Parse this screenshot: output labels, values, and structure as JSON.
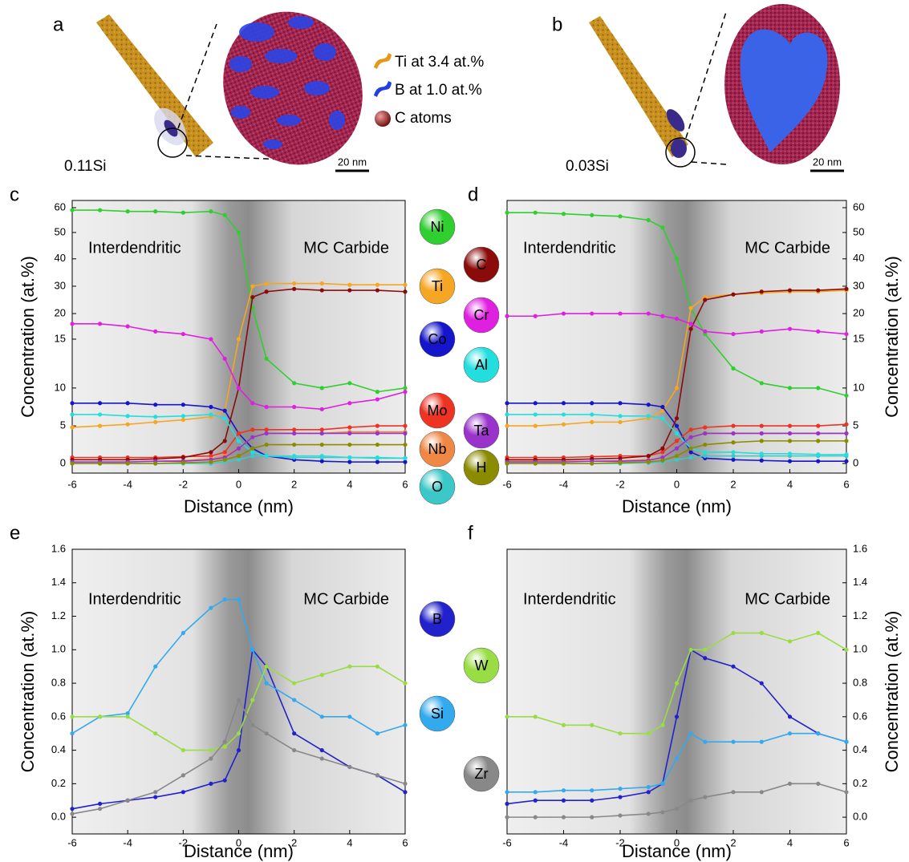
{
  "panels": [
    {
      "letter": "a",
      "sample": "0.11Si",
      "scale_bar": "20 nm"
    },
    {
      "letter": "b",
      "sample": "0.03Si",
      "scale_bar": "20 nm"
    }
  ],
  "legend_3d": [
    "Ti at 3.4 at.%",
    "B at 1.0 at.%",
    "C atoms"
  ],
  "chart_data": [
    {
      "type": "line",
      "panel": "c",
      "xlabel": "Distance (nm)",
      "ylabel": "Concentration (at.%)",
      "annotations": [
        "Interdendritic",
        "MC Carbide"
      ],
      "yscale": "broken",
      "xlim": [
        -6,
        6
      ],
      "xticks": [
        -6,
        -4,
        -2,
        0,
        2,
        4,
        6
      ],
      "ylim": [
        -1,
        61
      ],
      "yticks": [
        0,
        5,
        10,
        15,
        20,
        30,
        40,
        50,
        60
      ],
      "x": [
        -6,
        -5,
        -4,
        -3,
        -2,
        -1,
        -0.5,
        0,
        0.5,
        1,
        2,
        3,
        4,
        5,
        6
      ],
      "series": [
        {
          "name": "Ni",
          "color": "#2fcf2f",
          "values": [
            59,
            59,
            58.5,
            58.5,
            58,
            58.5,
            57,
            50,
            22,
            13,
            10.5,
            10,
            10.5,
            9.5,
            10
          ]
        },
        {
          "name": "Ti",
          "color": "#f5a623",
          "values": [
            4.8,
            5,
            5.2,
            5.5,
            5.8,
            6.2,
            7,
            15,
            30,
            31,
            31,
            31,
            30.5,
            30.5,
            30.5
          ]
        },
        {
          "name": "Co",
          "color": "#1515cc",
          "values": [
            8,
            8,
            8,
            7.8,
            7.8,
            7.5,
            7,
            4,
            2,
            1,
            0.5,
            0.3,
            0.2,
            0.2,
            0.2
          ]
        },
        {
          "name": "Mo",
          "color": "#ee3322",
          "values": [
            0.8,
            0.8,
            0.8,
            0.8,
            0.9,
            1,
            1.5,
            4,
            4.5,
            4.5,
            4.5,
            4.5,
            4.8,
            5,
            5
          ]
        },
        {
          "name": "Nb",
          "color": "#ee8844",
          "values": [
            0.2,
            0.2,
            0.2,
            0.3,
            0.4,
            0.6,
            1,
            2,
            3.5,
            4,
            4,
            4,
            4.2,
            4.2,
            4.2
          ]
        },
        {
          "name": "O",
          "color": "#3cc8c8",
          "values": [
            0,
            0,
            0,
            0,
            0,
            0,
            0.2,
            0.5,
            1,
            1,
            0.8,
            0.8,
            0.8,
            0.7,
            0.7
          ]
        },
        {
          "name": "C",
          "color": "#8b0a0a",
          "values": [
            0.5,
            0.5,
            0.5,
            0.6,
            0.8,
            1.5,
            3,
            10,
            26,
            28,
            29,
            28.5,
            28.5,
            28.5,
            28
          ]
        },
        {
          "name": "Cr",
          "color": "#e020e0",
          "values": [
            18,
            18,
            17.5,
            16.5,
            16,
            15,
            13,
            10,
            8,
            7.5,
            7.5,
            7.2,
            8,
            8.5,
            9.5
          ]
        },
        {
          "name": "Al",
          "color": "#22dede",
          "values": [
            6.5,
            6.5,
            6.3,
            6.2,
            6.3,
            6.5,
            6,
            3,
            1.5,
            1,
            1,
            1,
            0.8,
            0.8,
            0.7
          ]
        },
        {
          "name": "Ta",
          "color": "#9933cc",
          "values": [
            0.2,
            0.2,
            0.2,
            0.3,
            0.3,
            0.5,
            0.8,
            2,
            3.5,
            4,
            4,
            4,
            4,
            4,
            4
          ]
        },
        {
          "name": "H",
          "color": "#8b8b00",
          "values": [
            0,
            0,
            0,
            0,
            0.1,
            0.2,
            0.5,
            1,
            2,
            2.5,
            2.5,
            2.5,
            2.5,
            2.5,
            2.5
          ]
        }
      ]
    },
    {
      "type": "line",
      "panel": "d",
      "xlabel": "Distance (nm)",
      "ylabel": "Concentration (at.%)",
      "annotations": [
        "Interdendritic",
        "MC Carbide"
      ],
      "yscale": "broken",
      "xlim": [
        -6,
        6
      ],
      "xticks": [
        -6,
        -4,
        -2,
        0,
        2,
        4,
        6
      ],
      "ylim": [
        -1,
        61
      ],
      "yticks": [
        0,
        5,
        10,
        15,
        20,
        30,
        40,
        50,
        60
      ],
      "x": [
        -6,
        -5,
        -4,
        -3,
        -2,
        -1,
        -0.5,
        0,
        0.5,
        1,
        2,
        3,
        4,
        5,
        6
      ],
      "series": [
        {
          "color": "#2fcf2f",
          "values": [
            58,
            58,
            57.5,
            57,
            56.5,
            55,
            52,
            40,
            22,
            16,
            12,
            10.5,
            10,
            10,
            9
          ]
        },
        {
          "color": "#f5a623",
          "values": [
            5,
            5,
            5.2,
            5.5,
            5.5,
            6,
            7,
            10,
            22,
            26,
            27,
            27.5,
            28,
            28,
            28.5
          ]
        },
        {
          "color": "#1515cc",
          "values": [
            8,
            8,
            8,
            8,
            8,
            7.8,
            7.5,
            5,
            1.5,
            0.7,
            0.5,
            0.4,
            0.3,
            0.3,
            0.3
          ]
        },
        {
          "color": "#ee3322",
          "values": [
            0.8,
            0.8,
            0.8,
            0.9,
            1,
            1,
            1.5,
            3,
            4.5,
            4.8,
            5,
            5,
            5,
            5,
            5.2
          ]
        },
        {
          "color": "#ee8844",
          "values": [
            0.3,
            0.3,
            0.3,
            0.3,
            0.4,
            0.5,
            0.8,
            2,
            3.5,
            4,
            4,
            4,
            4,
            4,
            4
          ]
        },
        {
          "color": "#3cc8c8",
          "values": [
            0,
            0,
            0,
            0,
            0,
            0.1,
            0.2,
            0.5,
            0.8,
            1,
            1,
            1,
            1,
            1,
            1
          ]
        },
        {
          "color": "#8b0a0a",
          "values": [
            0.5,
            0.5,
            0.5,
            0.6,
            0.7,
            1,
            2,
            6,
            17,
            25,
            27,
            28,
            28.5,
            28.5,
            29
          ]
        },
        {
          "color": "#e020e0",
          "values": [
            19.5,
            19.5,
            20,
            20,
            20,
            20,
            19.5,
            19,
            18,
            16.5,
            16,
            16.5,
            17,
            16.5,
            16
          ]
        },
        {
          "color": "#22dede",
          "values": [
            6.5,
            6.5,
            6.5,
            6.5,
            6.3,
            6.3,
            6,
            4,
            2,
            1.5,
            1.5,
            1.3,
            1.3,
            1.2,
            1.2
          ]
        },
        {
          "color": "#9933cc",
          "values": [
            0.2,
            0.2,
            0.2,
            0.3,
            0.3,
            0.4,
            0.8,
            2,
            3.5,
            4,
            4,
            4,
            4,
            4,
            4
          ]
        },
        {
          "color": "#8b8b00",
          "values": [
            0,
            0,
            0,
            0,
            0.1,
            0.2,
            0.4,
            1,
            2,
            2.5,
            2.8,
            3,
            3,
            3,
            3
          ]
        }
      ]
    },
    {
      "type": "line",
      "panel": "e",
      "xlabel": "Distance (nm)",
      "ylabel": "Concentration (at.%)",
      "annotations": [
        "Interdendritic",
        "MC Carbide"
      ],
      "xlim": [
        -6,
        6
      ],
      "xticks": [
        -6,
        -4,
        -2,
        0,
        2,
        4,
        6
      ],
      "ylim": [
        -0.1,
        1.6
      ],
      "yticks": [
        {
          "value": 0,
          "label": "0.0"
        },
        0.2,
        0.4,
        0.6,
        0.8,
        {
          "value": 1,
          "label": "1.0"
        },
        1.2,
        1.4,
        1.6
      ],
      "x": [
        -6,
        -5,
        -4,
        -3,
        -2,
        -1,
        -0.5,
        0,
        0.5,
        1,
        2,
        3,
        4,
        5,
        6
      ],
      "series": [
        {
          "name": "B",
          "color": "#2222cc",
          "values": [
            0.05,
            0.08,
            0.1,
            0.12,
            0.15,
            0.2,
            0.22,
            0.4,
            1.0,
            0.9,
            0.5,
            0.4,
            0.3,
            0.25,
            0.15
          ]
        },
        {
          "name": "Si",
          "color": "#33aaee",
          "values": [
            0.5,
            0.6,
            0.62,
            0.9,
            1.1,
            1.25,
            1.3,
            1.3,
            1.0,
            0.8,
            0.7,
            0.6,
            0.6,
            0.5,
            0.55
          ]
        },
        {
          "name": "W",
          "color": "#99dd44",
          "values": [
            0.6,
            0.6,
            0.6,
            0.5,
            0.4,
            0.4,
            0.42,
            0.5,
            0.7,
            0.9,
            0.8,
            0.85,
            0.9,
            0.9,
            0.8
          ]
        },
        {
          "name": "Zr",
          "color": "#888888",
          "values": [
            0.02,
            0.05,
            0.1,
            0.15,
            0.25,
            0.35,
            0.45,
            0.7,
            0.55,
            0.5,
            0.4,
            0.35,
            0.3,
            0.25,
            0.2
          ]
        }
      ]
    },
    {
      "type": "line",
      "panel": "f",
      "xlabel": "Distance (nm)",
      "ylabel": "Concentration (at.%)",
      "annotations": [
        "Interdendritic",
        "MC Carbide"
      ],
      "xlim": [
        -6,
        6
      ],
      "xticks": [
        -6,
        -4,
        -2,
        0,
        2,
        4,
        6
      ],
      "ylim": [
        -0.1,
        1.6
      ],
      "yticks": [
        {
          "value": 0,
          "label": "0.0"
        },
        0.2,
        0.4,
        0.6,
        0.8,
        {
          "value": 1,
          "label": "1.0"
        },
        1.2,
        1.4,
        1.6
      ],
      "x": [
        -6,
        -5,
        -4,
        -3,
        -2,
        -1,
        -0.5,
        0,
        0.5,
        1,
        2,
        3,
        4,
        5,
        6
      ],
      "series": [
        {
          "color": "#2222cc",
          "values": [
            0.08,
            0.1,
            0.1,
            0.1,
            0.12,
            0.15,
            0.2,
            0.6,
            1.0,
            0.95,
            0.9,
            0.8,
            0.6,
            0.5,
            0.45
          ]
        },
        {
          "color": "#33aaee",
          "values": [
            0.15,
            0.15,
            0.16,
            0.16,
            0.17,
            0.18,
            0.2,
            0.35,
            0.5,
            0.45,
            0.45,
            0.45,
            0.5,
            0.5,
            0.45
          ]
        },
        {
          "color": "#99dd44",
          "values": [
            0.6,
            0.6,
            0.55,
            0.55,
            0.5,
            0.5,
            0.55,
            0.8,
            1.0,
            1.0,
            1.1,
            1.1,
            1.05,
            1.1,
            1.0
          ]
        },
        {
          "color": "#888888",
          "values": [
            0,
            0,
            0,
            0,
            0.01,
            0.02,
            0.03,
            0.05,
            0.1,
            0.12,
            0.15,
            0.15,
            0.2,
            0.2,
            0.15
          ]
        }
      ]
    }
  ]
}
